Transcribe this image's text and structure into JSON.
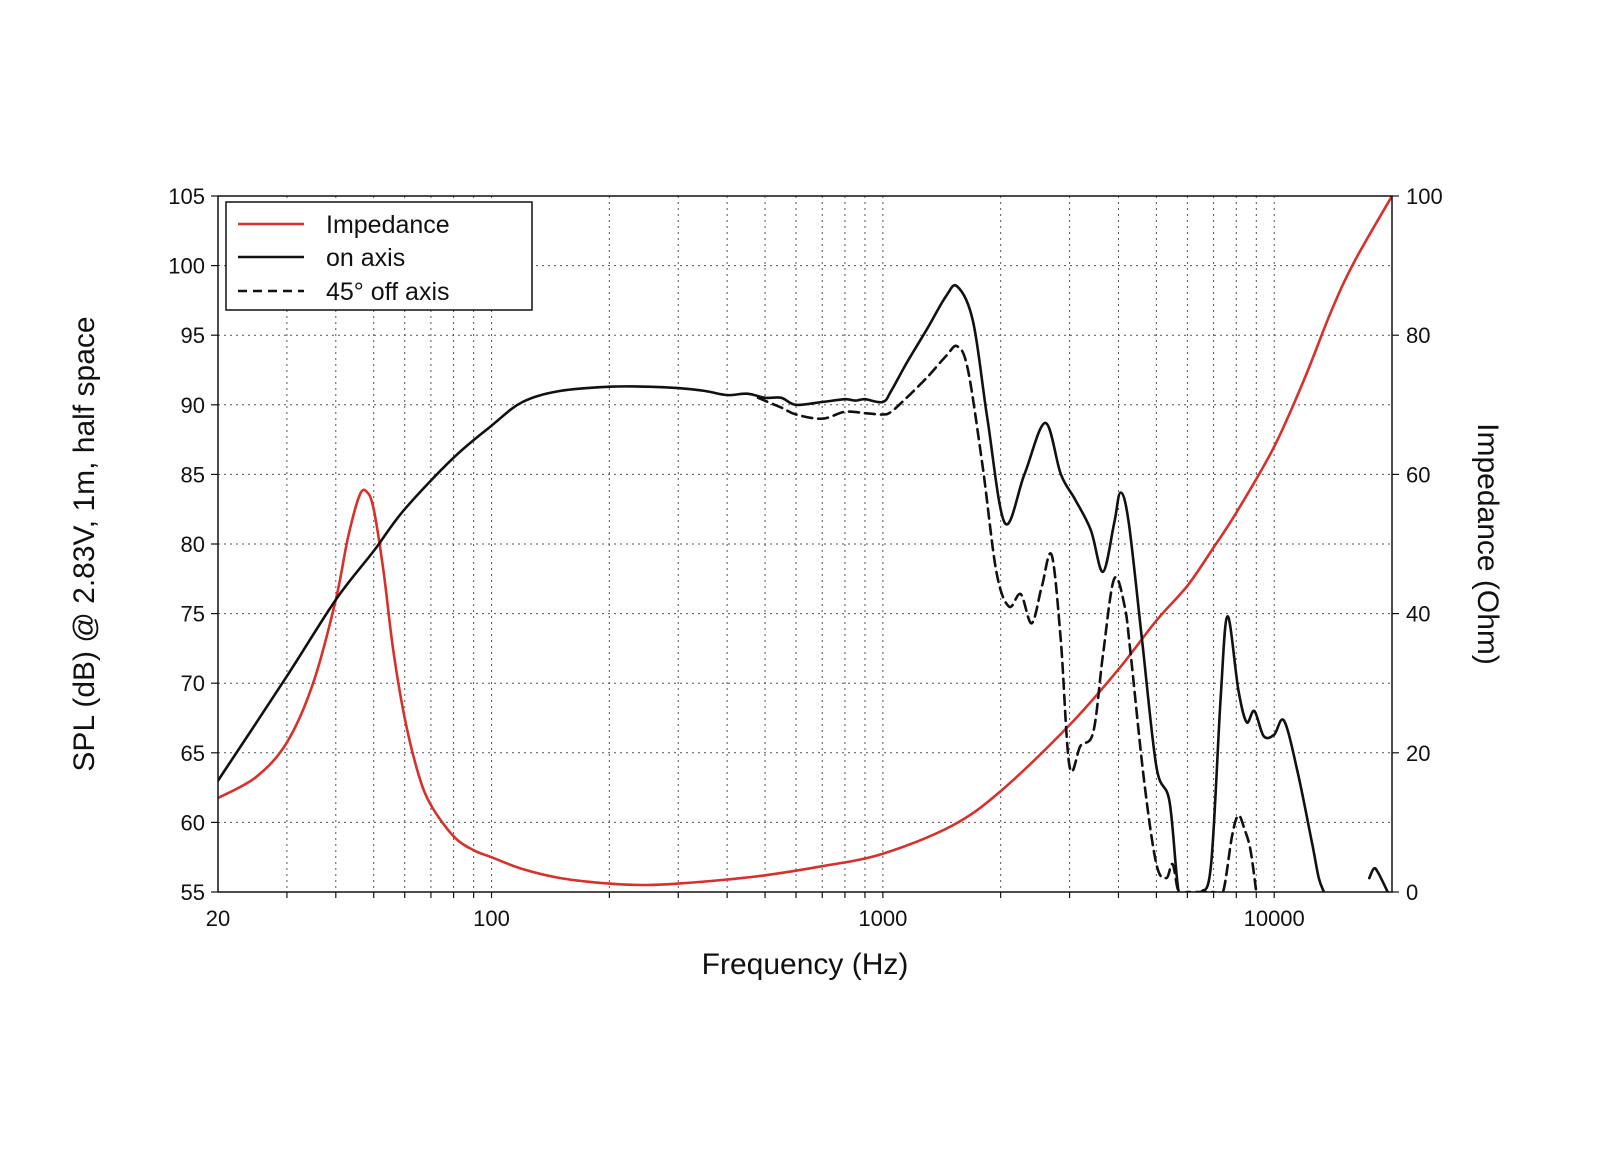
{
  "chart_data": {
    "type": "line",
    "xlabel": "Frequency (Hz)",
    "ylabel": "SPL (dB) @ 2.83V, 1m, half space",
    "y2label": "Impedance (Ohm)",
    "x_scale": "log",
    "xlim": [
      20,
      20000
    ],
    "ylim": [
      55,
      105
    ],
    "y2lim": [
      0,
      100
    ],
    "x_ticks": [
      20,
      100,
      1000,
      10000
    ],
    "x_tick_labels": [
      "20",
      "100",
      "1000",
      "10000"
    ],
    "y_ticks": [
      55,
      60,
      65,
      70,
      75,
      80,
      85,
      90,
      95,
      100,
      105
    ],
    "y_tick_labels": [
      "55",
      "60",
      "65",
      "70",
      "75",
      "80",
      "85",
      "90",
      "95",
      "100",
      "105"
    ],
    "y2_ticks": [
      0,
      20,
      40,
      60,
      80,
      100
    ],
    "y2_tick_labels": [
      "0",
      "20",
      "40",
      "60",
      "80",
      "100"
    ],
    "grid": true,
    "legend_position": "top-left",
    "series": [
      {
        "name": "Impedance",
        "axis": "right",
        "color": "#d8302a",
        "style": "solid",
        "x": [
          20,
          25,
          30,
          35,
          40,
          43,
          46,
          48,
          50,
          53,
          56,
          60,
          65,
          70,
          80,
          90,
          100,
          120,
          150,
          200,
          250,
          300,
          400,
          500,
          700,
          1000,
          1500,
          2000,
          3000,
          4000,
          5000,
          6000,
          7000,
          8000,
          10000,
          12000,
          14000,
          16000,
          20000
        ],
        "y": [
          13.5,
          16.5,
          21.5,
          30,
          42,
          51,
          57,
          57.5,
          55,
          46,
          35,
          25,
          17,
          12.5,
          8,
          6,
          5,
          3.3,
          2,
          1.2,
          1,
          1.2,
          1.8,
          2.4,
          3.7,
          5.5,
          9.5,
          14.5,
          24,
          32,
          39,
          44,
          49.5,
          54.5,
          64,
          74,
          83.5,
          90.5,
          100
        ]
      },
      {
        "name": "on axis",
        "axis": "left",
        "color": "#111111",
        "style": "solid",
        "x": [
          20,
          30,
          40,
          50,
          60,
          80,
          100,
          120,
          150,
          200,
          250,
          300,
          350,
          400,
          450,
          500,
          550,
          600,
          700,
          800,
          850,
          900,
          1000,
          1050,
          1150,
          1300,
          1450,
          1550,
          1700,
          1850,
          2050,
          2300,
          2600,
          2850,
          3100,
          3400,
          3650,
          3900,
          4050,
          4250,
          4600,
          5000,
          5400,
          5700,
          6000,
          6500,
          6900,
          7300,
          7600,
          8100,
          8500,
          8900,
          9400,
          10000,
          10600,
          11500,
          12500,
          13000,
          13400
        ],
        "y": [
          63,
          70.5,
          76,
          79.5,
          82.5,
          86.2,
          88.5,
          90.2,
          91,
          91.3,
          91.3,
          91.2,
          91,
          90.7,
          90.8,
          90.5,
          90.5,
          90,
          90.2,
          90.4,
          90.3,
          90.4,
          90.2,
          91,
          93,
          95.5,
          97.8,
          98.5,
          96,
          89,
          81.5,
          85,
          88.7,
          85,
          83.2,
          81,
          78,
          81.5,
          83.7,
          81.5,
          73,
          64,
          61.5,
          55,
          55,
          55,
          57,
          69,
          74.8,
          69.5,
          67.2,
          68,
          66.2,
          66.3,
          67.3,
          63.5,
          58.5,
          56,
          55
        ]
      },
      {
        "name": "on axis",
        "axis": "left",
        "color": "#111111",
        "style": "solid",
        "legend": false,
        "x": [
          17500,
          18000,
          18500,
          19500
        ],
        "y": [
          56,
          56.7,
          56.3,
          55
        ]
      },
      {
        "name": "45° off axis",
        "axis": "left",
        "color": "#111111",
        "style": "dashed",
        "x": [
          480,
          550,
          600,
          700,
          800,
          900,
          1000,
          1050,
          1150,
          1300,
          1450,
          1550,
          1650,
          1800,
          1950,
          2100,
          2250,
          2400,
          2550,
          2700,
          2850,
          3000,
          3200,
          3450,
          3650,
          3900,
          4150,
          4300,
          4650,
          5000,
          5300,
          5500,
          5700,
          6000,
          6500,
          7000,
          7400,
          7800,
          8100,
          8400,
          8700,
          9000
        ],
        "y": [
          90.5,
          89.8,
          89.3,
          89,
          89.5,
          89.4,
          89.3,
          89.5,
          90.5,
          92,
          93.5,
          94.2,
          92.5,
          85.5,
          78,
          75.5,
          76.4,
          74.3,
          77,
          79.2,
          73,
          64,
          65.5,
          66.5,
          72,
          77.5,
          75.5,
          72,
          63,
          57,
          56,
          57,
          55,
          55,
          55,
          55,
          55,
          59,
          60.5,
          59.5,
          58,
          55
        ]
      }
    ]
  }
}
